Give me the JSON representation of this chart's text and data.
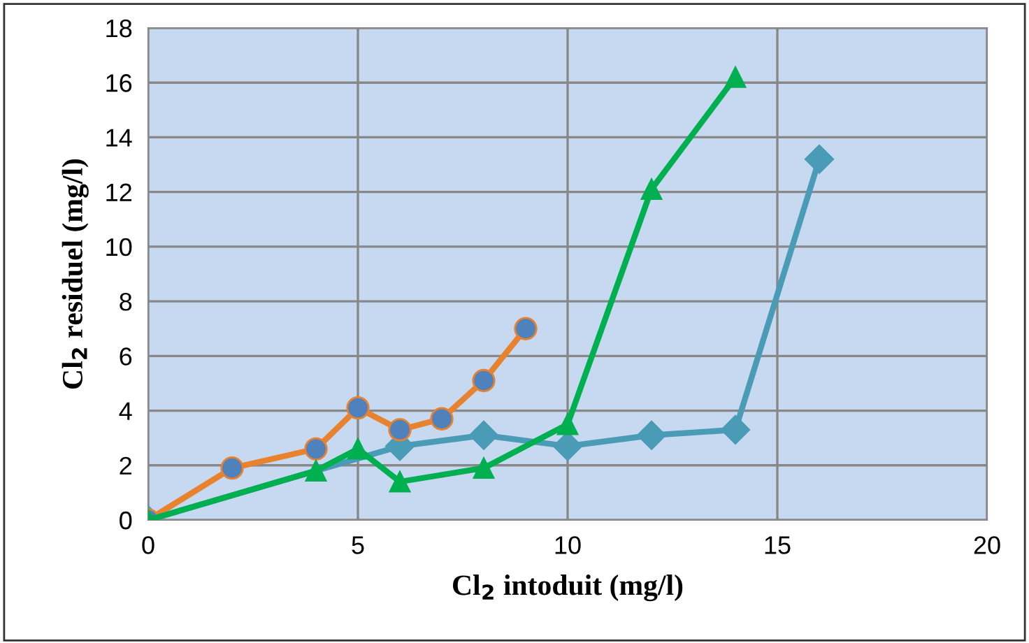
{
  "chart_data": {
    "type": "line",
    "xlabel": "Cl$_{2}$ intoduit (mg/l)",
    "ylabel": "Cl$_{2}$ residuel (mg/l)",
    "series": [
      {
        "color": "#4a9bb5",
        "marker": "diamond",
        "x": [
          0,
          6,
          8,
          10,
          12,
          14,
          16
        ],
        "values": [
          0,
          2.7,
          3.1,
          2.7,
          3.1,
          3.3,
          13.2
        ]
      },
      {
        "color": "#e8822e",
        "marker": "circle",
        "x": [
          0,
          2,
          4,
          5,
          6,
          7,
          8,
          9
        ],
        "values": [
          0,
          1.9,
          2.6,
          4.1,
          3.3,
          3.7,
          5.1,
          7.0
        ]
      },
      {
        "color": "#00b050",
        "marker": "triangle",
        "x": [
          0,
          4,
          5,
          6,
          8,
          10,
          12,
          14
        ],
        "values": [
          0,
          1.8,
          2.6,
          1.4,
          1.9,
          3.5,
          12.1,
          16.2
        ]
      }
    ],
    "xlim": [
      0,
      20
    ],
    "xticks": [
      0,
      5,
      10,
      15,
      20
    ],
    "ylim": [
      0,
      18
    ],
    "yticks": [
      0,
      2,
      4,
      6,
      8,
      10,
      12,
      14,
      16,
      18
    ],
    "grid": true,
    "legend": false,
    "line_style": "solid"
  }
}
